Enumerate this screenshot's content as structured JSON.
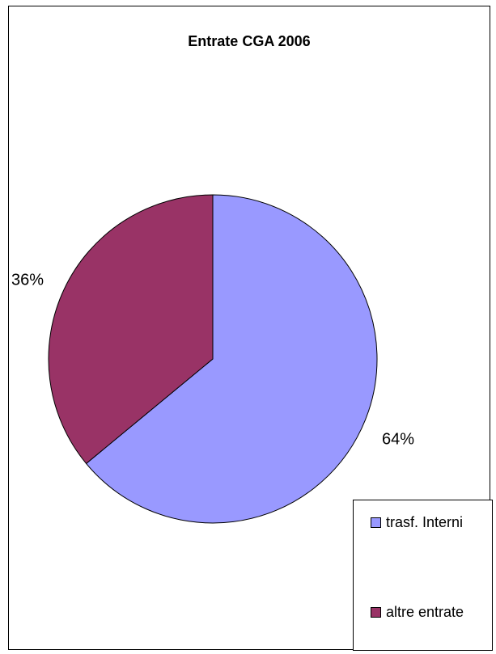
{
  "chart_data": {
    "type": "pie",
    "title": "Entrate CGA 2006",
    "categories": [
      "trasf. Interni",
      "altre entrate"
    ],
    "values": [
      64,
      36
    ],
    "labels": [
      "64%",
      "36%"
    ],
    "colors": [
      "#9999ff",
      "#993366"
    ],
    "legend_position": "bottom-right"
  }
}
